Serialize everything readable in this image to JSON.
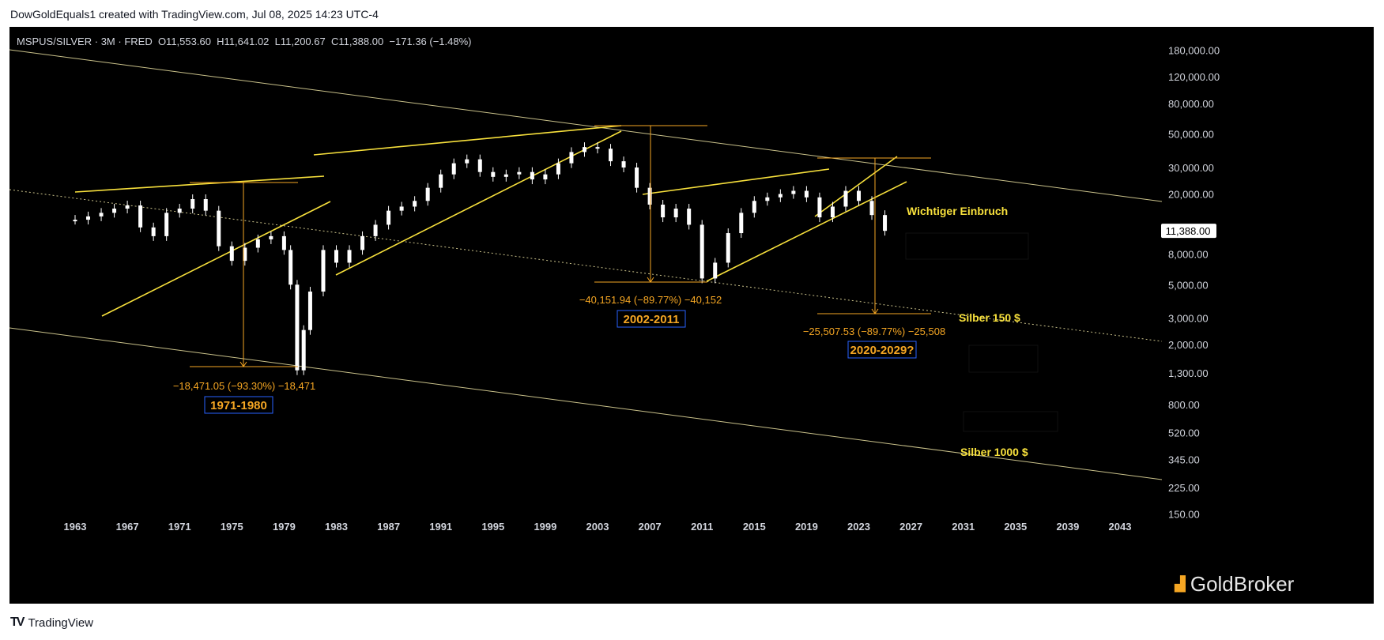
{
  "attribution": "DowGoldEquals1 created with TradingView.com, Jul 08, 2025 14:23 UTC-4",
  "footer_brand": "TradingView",
  "watermark": "GoldBroker",
  "chart_data": {
    "type": "candlestick",
    "symbol": "MSPUS/SILVER",
    "interval": "3M",
    "source": "FRED",
    "ohlc_text": "O11,553.60  H11,641.02  L11,200.67  C11,388.00  −171.36 (−1.48%)",
    "last_price_label": "11,388.00",
    "y_scale": "log",
    "ylim": [
      150,
      180000
    ],
    "xlim": [
      1960,
      2046
    ],
    "x_ticks": [
      "1963",
      "1967",
      "1971",
      "1975",
      "1979",
      "1983",
      "1987",
      "1991",
      "1995",
      "1999",
      "2003",
      "2007",
      "2011",
      "2015",
      "2019",
      "2023",
      "2027",
      "2031",
      "2035",
      "2039",
      "2043"
    ],
    "y_ticks": [
      180000,
      120000,
      80000,
      50000,
      30000,
      20000,
      8000,
      5000,
      3000,
      2000,
      1300,
      800,
      520,
      345,
      225,
      150
    ],
    "y_tick_labels": [
      "180,000.00",
      "120,000.00",
      "80,000.00",
      "50,000.00",
      "30,000.00",
      "20,000.00",
      "8,000.00",
      "5,000.00",
      "3,000.00",
      "2,000.00",
      "1,300.00",
      "800.00",
      "520.00",
      "345.00",
      "225.00",
      "150.00"
    ],
    "series": [
      {
        "points": [
          [
            1963,
            13500
          ],
          [
            1964,
            14200
          ],
          [
            1965,
            15000
          ],
          [
            1966,
            16000
          ],
          [
            1967,
            16800
          ],
          [
            1968,
            12000
          ],
          [
            1969,
            10500
          ],
          [
            1970,
            15000
          ],
          [
            1971,
            16000
          ],
          [
            1972,
            18500
          ],
          [
            1973,
            15500
          ],
          [
            1974,
            9000
          ],
          [
            1975,
            7200
          ],
          [
            1976,
            8800
          ],
          [
            1977,
            10000
          ],
          [
            1978,
            10500
          ],
          [
            1979,
            8500
          ],
          [
            1979.5,
            5000
          ],
          [
            1980,
            1350
          ],
          [
            1980.5,
            2500
          ],
          [
            1981,
            4500
          ],
          [
            1982,
            8500
          ],
          [
            1983,
            7000
          ],
          [
            1984,
            8500
          ],
          [
            1985,
            10500
          ],
          [
            1986,
            12500
          ],
          [
            1987,
            15500
          ],
          [
            1988,
            16500
          ],
          [
            1989,
            18000
          ],
          [
            1990,
            22000
          ],
          [
            1991,
            27000
          ],
          [
            1992,
            32000
          ],
          [
            1993,
            34000
          ],
          [
            1994,
            28000
          ],
          [
            1995,
            26000
          ],
          [
            1996,
            27000
          ],
          [
            1997,
            28000
          ],
          [
            1998,
            25000
          ],
          [
            1999,
            27000
          ],
          [
            2000,
            32000
          ],
          [
            2001,
            38000
          ],
          [
            2002,
            41000
          ],
          [
            2003,
            40000
          ],
          [
            2004,
            33000
          ],
          [
            2005,
            30000
          ],
          [
            2006,
            22000
          ],
          [
            2007,
            17000
          ],
          [
            2008,
            14000
          ],
          [
            2009,
            16000
          ],
          [
            2010,
            12500
          ],
          [
            2011,
            5500
          ],
          [
            2012,
            7000
          ],
          [
            2013,
            11000
          ],
          [
            2014,
            15000
          ],
          [
            2015,
            18000
          ],
          [
            2016,
            19000
          ],
          [
            2017,
            20000
          ],
          [
            2018,
            21000
          ],
          [
            2019,
            19000
          ],
          [
            2020,
            14000
          ],
          [
            2021,
            16500
          ],
          [
            2022,
            21000
          ],
          [
            2023,
            18000
          ],
          [
            2024,
            14500
          ],
          [
            2025,
            11388
          ]
        ]
      }
    ],
    "annotations": [
      {
        "label": "−18,471.05 (−93.30%) −18,471",
        "period": "1971-1980"
      },
      {
        "label": "−40,151.94 (−89.77%) −40,152",
        "period": "2002-2011"
      },
      {
        "label": "−25,507.53 (−89.77%) −25,508",
        "period": "2020-2029?"
      }
    ],
    "text_labels": {
      "breakdown": "Wichtiger Einbruch",
      "silver150": "Silber 150 $",
      "silver1000": "Silber 1000 $"
    }
  },
  "colors": {
    "background": "#000000",
    "candle": "#ffffff",
    "trend": "#f7e03c",
    "measure": "#f5a623",
    "channel": "#c9c18a",
    "period_box": "#2962ff"
  }
}
